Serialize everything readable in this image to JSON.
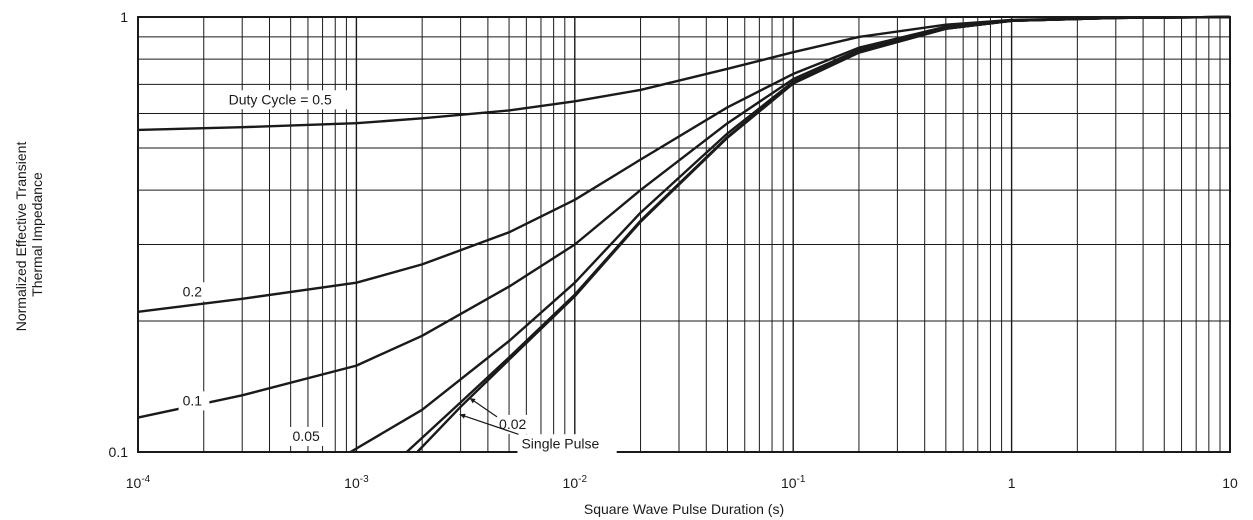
{
  "chart_data": {
    "type": "line",
    "title": "",
    "xlabel": "Square Wave Pulse Duration (s)",
    "ylabel_lines": [
      "Normalized  Effective Transient",
      "Thermal Impedance"
    ],
    "x_scale": "log",
    "y_scale": "log",
    "xlim": [
      0.0001,
      10
    ],
    "ylim": [
      0.1,
      1
    ],
    "grid": true,
    "legend": "none",
    "line_color": "#1a1a1a",
    "x_ticks": [
      {
        "value": 0.0001,
        "base": "10",
        "exp": "-4",
        "plain": ""
      },
      {
        "value": 0.001,
        "base": "10",
        "exp": "-3",
        "plain": ""
      },
      {
        "value": 0.01,
        "base": "10",
        "exp": "-2",
        "plain": ""
      },
      {
        "value": 0.1,
        "base": "10",
        "exp": "-1",
        "plain": ""
      },
      {
        "value": 1,
        "base": "",
        "exp": "",
        "plain": "1"
      },
      {
        "value": 10,
        "base": "",
        "exp": "",
        "plain": "10"
      }
    ],
    "y_ticks": [
      {
        "value": 0.1,
        "label": "0.1"
      },
      {
        "value": 1,
        "label": "1"
      }
    ],
    "series": [
      {
        "name": "Duty Cycle = 0.5",
        "points": [
          [
            0.0001,
            0.55
          ],
          [
            0.0003,
            0.558
          ],
          [
            0.001,
            0.57
          ],
          [
            0.002,
            0.585
          ],
          [
            0.005,
            0.61
          ],
          [
            0.01,
            0.64
          ],
          [
            0.02,
            0.68
          ],
          [
            0.05,
            0.76
          ],
          [
            0.1,
            0.83
          ],
          [
            0.2,
            0.9
          ],
          [
            0.5,
            0.96
          ],
          [
            1,
            0.985
          ],
          [
            3,
            0.995
          ],
          [
            10,
            1.0
          ]
        ]
      },
      {
        "name": "0.2",
        "points": [
          [
            0.0001,
            0.21
          ],
          [
            0.0003,
            0.225
          ],
          [
            0.001,
            0.245
          ],
          [
            0.002,
            0.27
          ],
          [
            0.005,
            0.32
          ],
          [
            0.01,
            0.38
          ],
          [
            0.02,
            0.47
          ],
          [
            0.05,
            0.62
          ],
          [
            0.1,
            0.74
          ],
          [
            0.2,
            0.85
          ],
          [
            0.5,
            0.95
          ],
          [
            1,
            0.98
          ],
          [
            3,
            0.995
          ],
          [
            10,
            1.0
          ]
        ]
      },
      {
        "name": "0.1",
        "points": [
          [
            0.0001,
            0.12
          ],
          [
            0.0003,
            0.135
          ],
          [
            0.001,
            0.158
          ],
          [
            0.002,
            0.185
          ],
          [
            0.005,
            0.24
          ],
          [
            0.01,
            0.3
          ],
          [
            0.02,
            0.4
          ],
          [
            0.05,
            0.57
          ],
          [
            0.1,
            0.72
          ],
          [
            0.2,
            0.84
          ],
          [
            0.5,
            0.94
          ],
          [
            1,
            0.98
          ],
          [
            3,
            0.995
          ],
          [
            10,
            1.0
          ]
        ]
      },
      {
        "name": "0.05",
        "points": [
          [
            0.00094,
            0.1
          ],
          [
            0.002,
            0.125
          ],
          [
            0.005,
            0.18
          ],
          [
            0.01,
            0.245
          ],
          [
            0.02,
            0.355
          ],
          [
            0.05,
            0.54
          ],
          [
            0.1,
            0.71
          ],
          [
            0.2,
            0.83
          ],
          [
            0.5,
            0.94
          ],
          [
            1,
            0.98
          ],
          [
            3,
            0.995
          ],
          [
            10,
            1.0
          ]
        ]
      },
      {
        "name": "0.02",
        "points": [
          [
            0.0017,
            0.1
          ],
          [
            0.003,
            0.13
          ],
          [
            0.005,
            0.165
          ],
          [
            0.01,
            0.23
          ],
          [
            0.02,
            0.34
          ],
          [
            0.05,
            0.53
          ],
          [
            0.1,
            0.705
          ],
          [
            0.2,
            0.83
          ],
          [
            0.5,
            0.94
          ],
          [
            1,
            0.98
          ],
          [
            3,
            0.995
          ],
          [
            10,
            1.0
          ]
        ]
      },
      {
        "name": "Single Pulse",
        "points": [
          [
            0.0019,
            0.1
          ],
          [
            0.003,
            0.127
          ],
          [
            0.005,
            0.163
          ],
          [
            0.01,
            0.228
          ],
          [
            0.02,
            0.338
          ],
          [
            0.05,
            0.528
          ],
          [
            0.1,
            0.703
          ],
          [
            0.2,
            0.828
          ],
          [
            0.5,
            0.94
          ],
          [
            1,
            0.98
          ],
          [
            3,
            0.995
          ],
          [
            10,
            1.0
          ]
        ]
      }
    ],
    "annotations": [
      {
        "text": "Duty Cycle = 0.5",
        "x": 0.00026,
        "y": 0.63
      },
      {
        "text": "0.2",
        "x": 0.00016,
        "y": 0.228
      },
      {
        "text": "0.1",
        "x": 0.00016,
        "y": 0.128
      },
      {
        "text": "0.05",
        "x": 0.00051,
        "y": 0.106
      },
      {
        "text": "0.02",
        "x": 0.0045,
        "y": 0.113
      },
      {
        "text": "Single Pulse",
        "x": 0.0057,
        "y": 0.102
      }
    ]
  }
}
